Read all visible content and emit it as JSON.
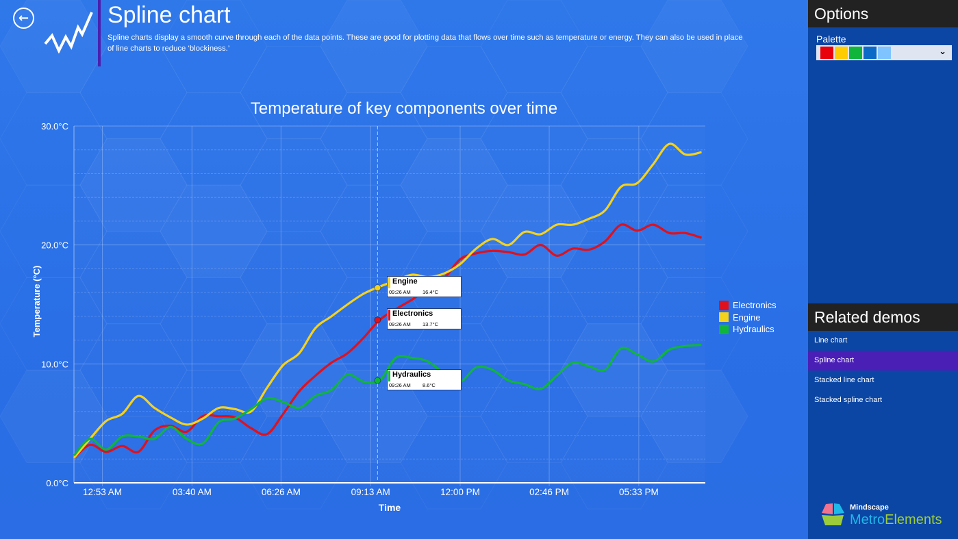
{
  "header": {
    "title": "Spline chart",
    "description": "Spline charts display a smooth curve through each of the data points. These are good for plotting data that flows over time such as temperature or energy. They can also be used in place of line charts to reduce ‘blockiness.’",
    "back_icon": "arrow-left-circle-icon",
    "app_icon": "spline-line-icon"
  },
  "sidebar": {
    "options_title": "Options",
    "palette_label": "Palette",
    "palette_colors": [
      "#e8000b",
      "#ffcc00",
      "#10b53c",
      "#0b6ac8",
      "#7fc3ff"
    ],
    "related_title": "Related demos",
    "related": [
      {
        "label": "Line chart",
        "selected": false
      },
      {
        "label": "Spline chart",
        "selected": true
      },
      {
        "label": "Stacked line chart",
        "selected": false
      },
      {
        "label": "Stacked spline chart",
        "selected": false
      }
    ],
    "logo": {
      "brand": "Mindscape",
      "product_a": "Metro",
      "product_b": "Elements"
    }
  },
  "tooltips": [
    {
      "series": "Engine",
      "time": "09:26 AM",
      "value": "16.4°C",
      "color": "#f5d21c"
    },
    {
      "series": "Electronics",
      "time": "09:26 AM",
      "value": "13.7°C",
      "color": "#e0101c"
    },
    {
      "series": "Hydraulics",
      "time": "09:26 AM",
      "value": "8.6°C",
      "color": "#10b53c"
    }
  ],
  "chart_data": {
    "type": "line",
    "subtype": "spline",
    "title": "Temperature of key components over time",
    "xlabel": "Time",
    "ylabel": "Temperature (°C)",
    "ylim": [
      0,
      30
    ],
    "y_ticks": [
      "0.0°C",
      "10.0°C",
      "20.0°C",
      "30.0°C"
    ],
    "x_ticks": [
      "12:53 AM",
      "03:40 AM",
      "06:26 AM",
      "09:13 AM",
      "12:00 PM",
      "02:46 PM",
      "05:33 PM"
    ],
    "grid": true,
    "legend": "right",
    "crosshair_time": "09:26 AM",
    "x": [
      "00:00",
      "00:30",
      "01:00",
      "01:30",
      "02:00",
      "02:30",
      "03:00",
      "03:30",
      "04:00",
      "04:30",
      "05:00",
      "05:30",
      "06:00",
      "06:30",
      "07:00",
      "07:30",
      "08:00",
      "08:30",
      "09:00",
      "09:30",
      "10:00",
      "10:30",
      "11:00",
      "11:30",
      "12:00",
      "12:30",
      "13:00",
      "13:30",
      "14:00",
      "14:30",
      "15:00",
      "15:30",
      "16:00",
      "16:30",
      "17:00",
      "17:30",
      "18:00",
      "18:30",
      "19:00",
      "19:30"
    ],
    "series": [
      {
        "name": "Electronics",
        "color": "#e0101c",
        "values": [
          2.1,
          3.2,
          2.6,
          3.1,
          2.6,
          4.4,
          4.8,
          4.3,
          5.6,
          5.6,
          5.5,
          4.6,
          4.1,
          5.8,
          7.7,
          9.0,
          10.1,
          10.9,
          12.2,
          13.7,
          14.6,
          15.4,
          16.3,
          17.2,
          18.8,
          19.3,
          19.5,
          19.4,
          19.2,
          20.0,
          19.1,
          19.7,
          19.6,
          20.3,
          21.7,
          21.2,
          21.7,
          21.0,
          21.0,
          20.6
        ]
      },
      {
        "name": "Engine",
        "color": "#f5d21c",
        "values": [
          2.1,
          3.7,
          5.2,
          5.8,
          7.3,
          6.3,
          5.5,
          4.9,
          5.4,
          6.3,
          6.2,
          6.0,
          8.0,
          9.9,
          10.9,
          13.0,
          14.0,
          15.0,
          15.9,
          16.5,
          17.0,
          17.5,
          17.3,
          17.6,
          18.4,
          19.7,
          20.5,
          20.0,
          21.1,
          20.9,
          21.7,
          21.7,
          22.2,
          22.9,
          24.9,
          25.2,
          26.8,
          28.5,
          27.6,
          27.8
        ]
      },
      {
        "name": "Hydraulics",
        "color": "#10b53c",
        "values": [
          2.3,
          3.7,
          2.8,
          3.9,
          3.9,
          3.7,
          4.7,
          3.7,
          3.3,
          5.1,
          5.4,
          6.2,
          7.1,
          6.8,
          6.3,
          7.3,
          7.8,
          9.1,
          8.5,
          8.6,
          10.5,
          10.5,
          10.2,
          9.2,
          8.5,
          9.7,
          9.5,
          8.6,
          8.3,
          7.9,
          9.0,
          10.1,
          9.8,
          9.5,
          11.3,
          10.8,
          10.2,
          11.2,
          11.5,
          11.6
        ]
      }
    ]
  }
}
